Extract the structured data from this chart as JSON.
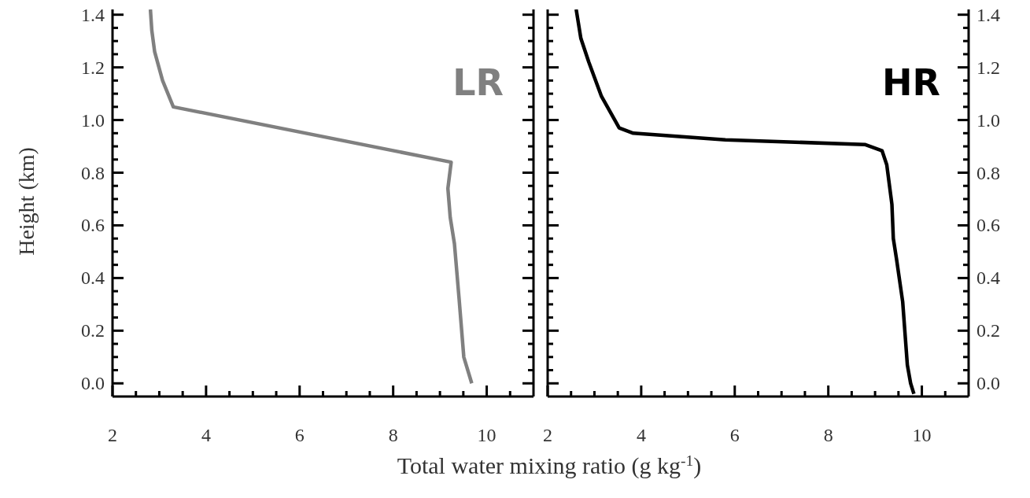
{
  "chart_data": [
    {
      "type": "line",
      "ylabel": "Height (km)",
      "xlabel": "Total water mixing ratio (g kg$^{-1}$)",
      "annotations": [
        "LR"
      ],
      "line_style": "solid",
      "marker": "none",
      "xlim": [
        2,
        11
      ],
      "ylim": [
        -0.05,
        1.42
      ],
      "xticks": [
        {
          "value": 2,
          "label": "2"
        },
        {
          "value": 2.5,
          "label": null
        },
        {
          "value": 3,
          "label": null
        },
        {
          "value": 3.5,
          "label": null
        },
        {
          "value": 4,
          "label": "4"
        },
        {
          "value": 4.5,
          "label": null
        },
        {
          "value": 5,
          "label": null
        },
        {
          "value": 5.5,
          "label": null
        },
        {
          "value": 6,
          "label": "6"
        },
        {
          "value": 6.5,
          "label": null
        },
        {
          "value": 7,
          "label": null
        },
        {
          "value": 7.5,
          "label": null
        },
        {
          "value": 8,
          "label": "8"
        },
        {
          "value": 8.5,
          "label": null
        },
        {
          "value": 9,
          "label": null
        },
        {
          "value": 9.5,
          "label": null
        },
        {
          "value": 10,
          "label": "10"
        },
        {
          "value": 10.5,
          "label": null
        }
      ],
      "yticks": [
        {
          "value": 0,
          "label": "0.0"
        },
        {
          "value": 0.05,
          "label": null
        },
        {
          "value": 0.1,
          "label": null
        },
        {
          "value": 0.15,
          "label": null
        },
        {
          "value": 0.2,
          "label": "0.2"
        },
        {
          "value": 0.25,
          "label": null
        },
        {
          "value": 0.3,
          "label": null
        },
        {
          "value": 0.35,
          "label": null
        },
        {
          "value": 0.4,
          "label": "0.4"
        },
        {
          "value": 0.45,
          "label": null
        },
        {
          "value": 0.5,
          "label": null
        },
        {
          "value": 0.55,
          "label": null
        },
        {
          "value": 0.6,
          "label": "0.6"
        },
        {
          "value": 0.65,
          "label": null
        },
        {
          "value": 0.7,
          "label": null
        },
        {
          "value": 0.75,
          "label": null
        },
        {
          "value": 0.8,
          "label": "0.8"
        },
        {
          "value": 0.85,
          "label": null
        },
        {
          "value": 0.9,
          "label": null
        },
        {
          "value": 0.95,
          "label": null
        },
        {
          "value": 1.0,
          "label": "1.0"
        },
        {
          "value": 1.05,
          "label": null
        },
        {
          "value": 1.1,
          "label": null
        },
        {
          "value": 1.15,
          "label": null
        },
        {
          "value": 1.2,
          "label": "1.2"
        },
        {
          "value": 1.25,
          "label": null
        },
        {
          "value": 1.3,
          "label": null
        },
        {
          "value": 1.35,
          "label": null
        },
        {
          "value": 1.4,
          "label": "1.4"
        }
      ],
      "series": [
        {
          "color": "#808080",
          "x": [
            2.81,
            2.84,
            2.9,
            3.07,
            3.3,
            9.24,
            9.17,
            9.22,
            9.31,
            9.41,
            9.51,
            9.68
          ],
          "values": [
            1.42,
            1.34,
            1.26,
            1.15,
            1.05,
            0.84,
            0.74,
            0.63,
            0.53,
            0.32,
            0.1,
            0.0
          ]
        }
      ]
    },
    {
      "type": "line",
      "annotations": [
        "HR"
      ],
      "line_style": "solid",
      "marker": "none",
      "xlim": [
        2,
        11
      ],
      "ylim": [
        -0.05,
        1.42
      ],
      "xticks": [
        {
          "value": 2,
          "label": "2"
        },
        {
          "value": 2.5,
          "label": null
        },
        {
          "value": 3,
          "label": null
        },
        {
          "value": 3.5,
          "label": null
        },
        {
          "value": 4,
          "label": "4"
        },
        {
          "value": 4.5,
          "label": null
        },
        {
          "value": 5,
          "label": null
        },
        {
          "value": 5.5,
          "label": null
        },
        {
          "value": 6,
          "label": "6"
        },
        {
          "value": 6.5,
          "label": null
        },
        {
          "value": 7,
          "label": null
        },
        {
          "value": 7.5,
          "label": null
        },
        {
          "value": 8,
          "label": "8"
        },
        {
          "value": 8.5,
          "label": null
        },
        {
          "value": 9,
          "label": null
        },
        {
          "value": 9.5,
          "label": null
        },
        {
          "value": 10,
          "label": "10"
        },
        {
          "value": 10.5,
          "label": null
        }
      ],
      "yticks": [
        {
          "value": 0,
          "label": "0.0"
        },
        {
          "value": 0.05,
          "label": null
        },
        {
          "value": 0.1,
          "label": null
        },
        {
          "value": 0.15,
          "label": null
        },
        {
          "value": 0.2,
          "label": "0.2"
        },
        {
          "value": 0.25,
          "label": null
        },
        {
          "value": 0.3,
          "label": null
        },
        {
          "value": 0.35,
          "label": null
        },
        {
          "value": 0.4,
          "label": "0.4"
        },
        {
          "value": 0.45,
          "label": null
        },
        {
          "value": 0.5,
          "label": null
        },
        {
          "value": 0.55,
          "label": null
        },
        {
          "value": 0.6,
          "label": "0.6"
        },
        {
          "value": 0.65,
          "label": null
        },
        {
          "value": 0.7,
          "label": null
        },
        {
          "value": 0.75,
          "label": null
        },
        {
          "value": 0.8,
          "label": "0.8"
        },
        {
          "value": 0.85,
          "label": null
        },
        {
          "value": 0.9,
          "label": null
        },
        {
          "value": 0.95,
          "label": null
        },
        {
          "value": 1.0,
          "label": "1.0"
        },
        {
          "value": 1.05,
          "label": null
        },
        {
          "value": 1.1,
          "label": null
        },
        {
          "value": 1.15,
          "label": null
        },
        {
          "value": 1.2,
          "label": "1.2"
        },
        {
          "value": 1.25,
          "label": null
        },
        {
          "value": 1.3,
          "label": null
        },
        {
          "value": 1.35,
          "label": null
        },
        {
          "value": 1.4,
          "label": "1.4"
        }
      ],
      "series": [
        {
          "color": "#000000",
          "x": [
            2.61,
            2.71,
            2.88,
            3.15,
            3.53,
            3.83,
            5.8,
            8.78,
            9.15,
            9.25,
            9.36,
            9.39,
            9.46,
            9.59,
            9.69,
            9.76,
            9.83
          ],
          "values": [
            1.42,
            1.31,
            1.22,
            1.09,
            0.97,
            0.95,
            0.925,
            0.907,
            0.883,
            0.83,
            0.68,
            0.55,
            0.47,
            0.31,
            0.07,
            0.0,
            -0.04
          ]
        }
      ]
    }
  ]
}
